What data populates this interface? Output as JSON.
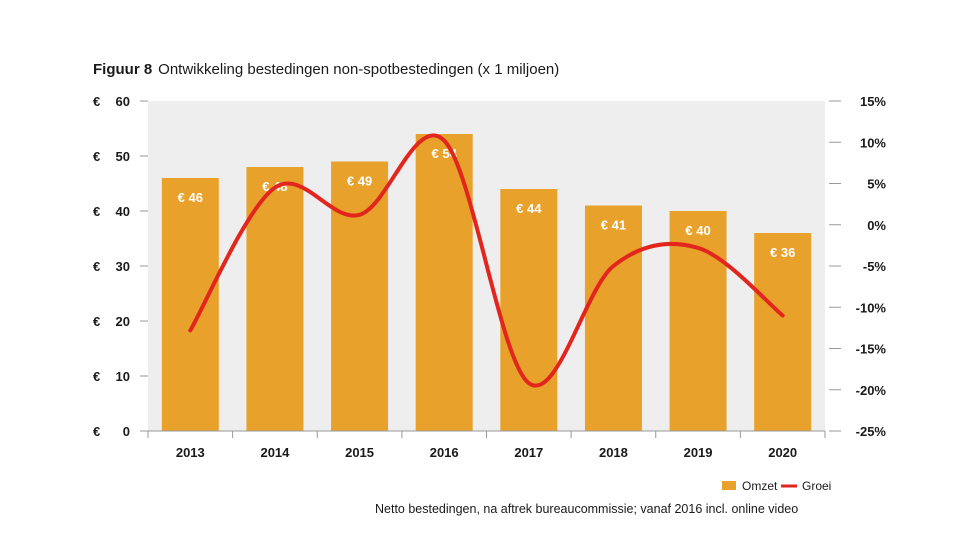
{
  "figure": {
    "label": "Figuur 8",
    "title": "Ontwikkeling bestedingen non-spotbestedingen (x 1 miljoen)",
    "footnote": "Netto bestedingen, na aftrek bureaucommissie; vanaf 2016 incl. online video"
  },
  "colors": {
    "bar": "#E8A22C",
    "line": "#E2261E",
    "plot_bg": "#EEEEEE",
    "axis": "#999999"
  },
  "chart_data": {
    "type": "bar",
    "categories": [
      "2013",
      "2014",
      "2015",
      "2016",
      "2017",
      "2018",
      "2019",
      "2020"
    ],
    "series": [
      {
        "name": "Omzet",
        "type": "bar",
        "axis": "left",
        "values": [
          46,
          48,
          49,
          54,
          44,
          41,
          40,
          36
        ],
        "labels": [
          "€ 46",
          "€ 48",
          "€ 49",
          "€ 54",
          "€ 44",
          "€ 41",
          "€ 40",
          "€ 36"
        ]
      },
      {
        "name": "Groei",
        "type": "line",
        "smooth": true,
        "axis": "right",
        "values": [
          -12.8,
          4.5,
          1.2,
          10.2,
          -19.2,
          -5.0,
          -2.8,
          -11.0
        ]
      }
    ],
    "y_left": {
      "ylim": [
        0,
        60
      ],
      "ticks": [
        0,
        10,
        20,
        30,
        40,
        50,
        60
      ],
      "prefix": "€"
    },
    "y_right": {
      "ylim": [
        -25,
        15
      ],
      "ticks": [
        15,
        10,
        5,
        0,
        -5,
        -10,
        -15,
        -20,
        -25
      ],
      "tick_labels": [
        "15%",
        "10%",
        "5%",
        "0%",
        "-5%",
        "-10%",
        "-15%",
        "-20%",
        "-25%"
      ]
    },
    "legend": {
      "position": "bottom-right",
      "entries": [
        "Omzet",
        "Groei"
      ]
    },
    "grid": false
  }
}
